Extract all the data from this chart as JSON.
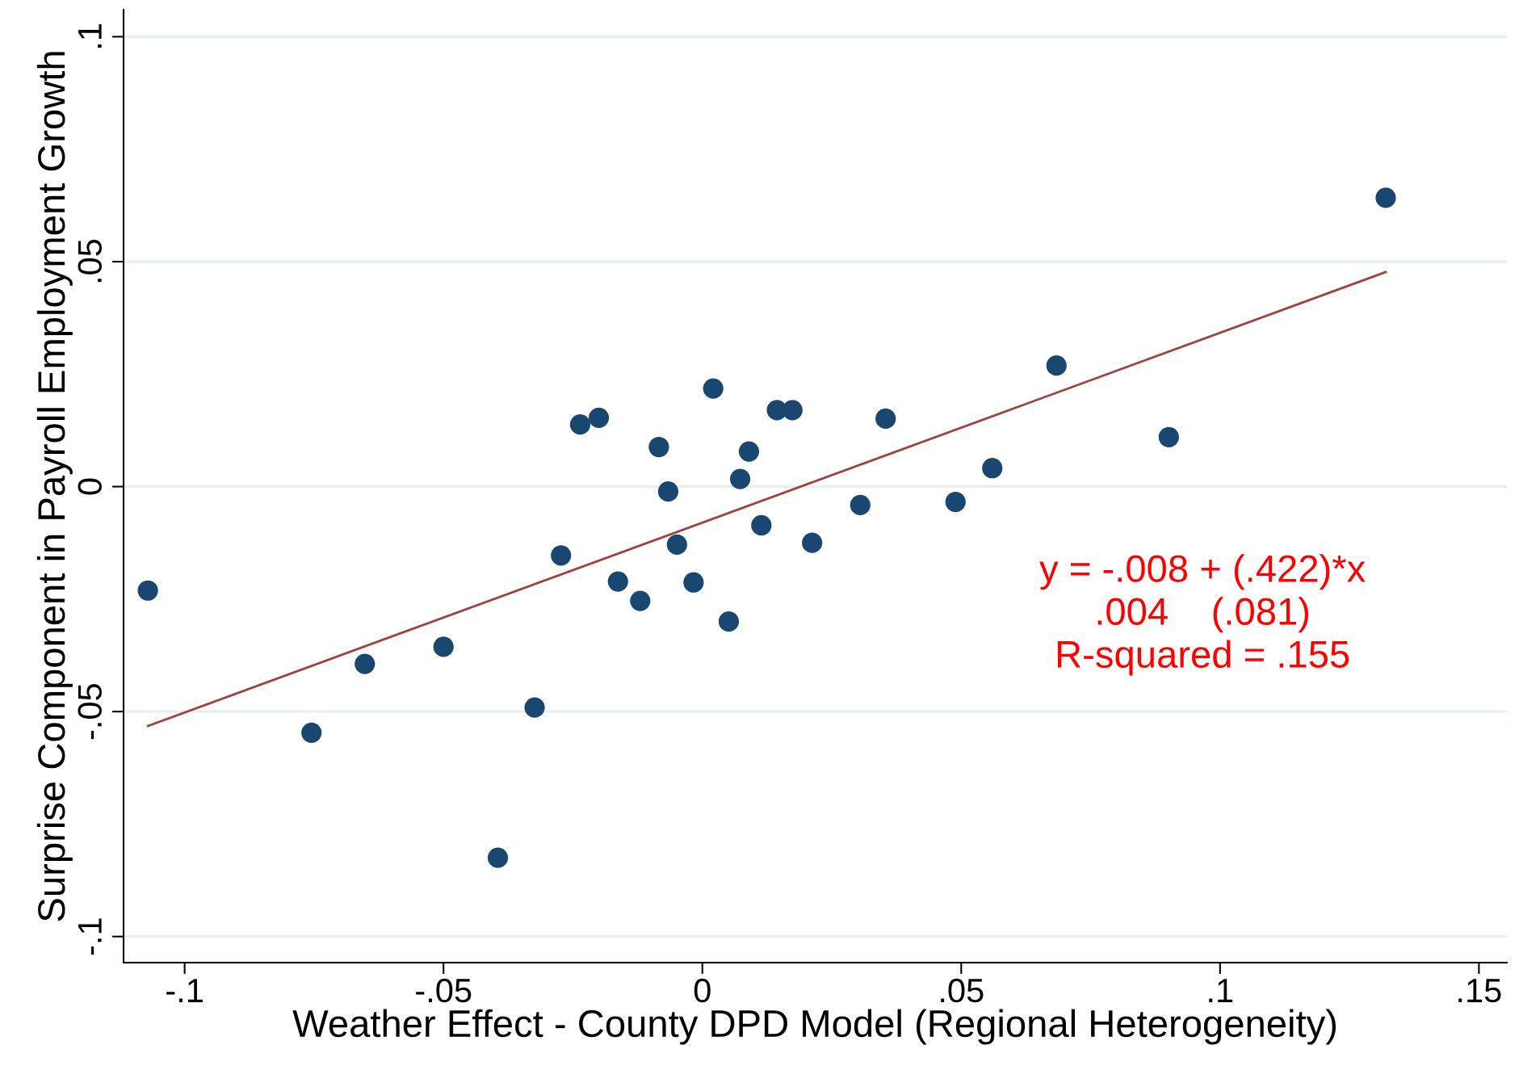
{
  "chart_data": {
    "type": "scatter",
    "xlabel": "Weather Effect - County DPD Model (Regional Heterogeneity)",
    "ylabel": "Surprise Component in Payroll Employment Growth",
    "xlim": [
      -0.1118,
      0.1554
    ],
    "ylim": [
      -0.1058,
      0.106
    ],
    "xticks": [
      {
        "value": -0.1,
        "label": "-.1"
      },
      {
        "value": -0.05,
        "label": "-.05"
      },
      0,
      {
        "value": 0.05,
        "label": ".05"
      },
      {
        "value": 0.1,
        "label": ".1"
      },
      {
        "value": 0.15,
        "label": ".15"
      }
    ],
    "yticks": [
      {
        "value": -0.1,
        "label": "-.1"
      },
      {
        "value": -0.05,
        "label": "-.05"
      },
      0,
      {
        "value": 0.05,
        "label": ".05"
      },
      {
        "value": 0.1,
        "label": ".1"
      }
    ],
    "grid": "y",
    "series": [
      {
        "marker": "circle",
        "color": "#1a476f",
        "x": [
          -0.1071,
          -0.0755,
          -0.0652,
          -0.05,
          -0.0395,
          -0.0324,
          -0.0273,
          -0.0236,
          -0.02,
          -0.0163,
          -0.012,
          -0.0084,
          -0.0066,
          -0.0049,
          -0.0017,
          0.0021,
          0.0051,
          0.0073,
          0.009,
          0.0114,
          0.0144,
          0.0174,
          0.0212,
          0.0305,
          0.0354,
          0.0489,
          0.056,
          0.0684,
          0.0901,
          0.132
        ],
        "values": [
          -0.0231,
          -0.0547,
          -0.0394,
          -0.0356,
          -0.0825,
          -0.0491,
          -0.0153,
          0.0138,
          0.0153,
          -0.0211,
          -0.0254,
          0.0088,
          -0.0011,
          -0.0129,
          -0.0213,
          0.0218,
          -0.03,
          0.0017,
          0.0078,
          -0.0086,
          0.017,
          0.017,
          -0.0125,
          -0.0041,
          0.0151,
          -0.0034,
          0.0041,
          0.0269,
          0.011,
          0.0642
        ]
      },
      {
        "type": "line",
        "marker": "none",
        "color": "#a0403f",
        "x": [
          -0.1071,
          0.132
        ],
        "values": [
          -0.0532,
          0.0477
        ]
      }
    ],
    "annotations": [
      "y = -.008 + (.422)*x",
      ".004    (.081)",
      "R-squared = .155"
    ]
  }
}
